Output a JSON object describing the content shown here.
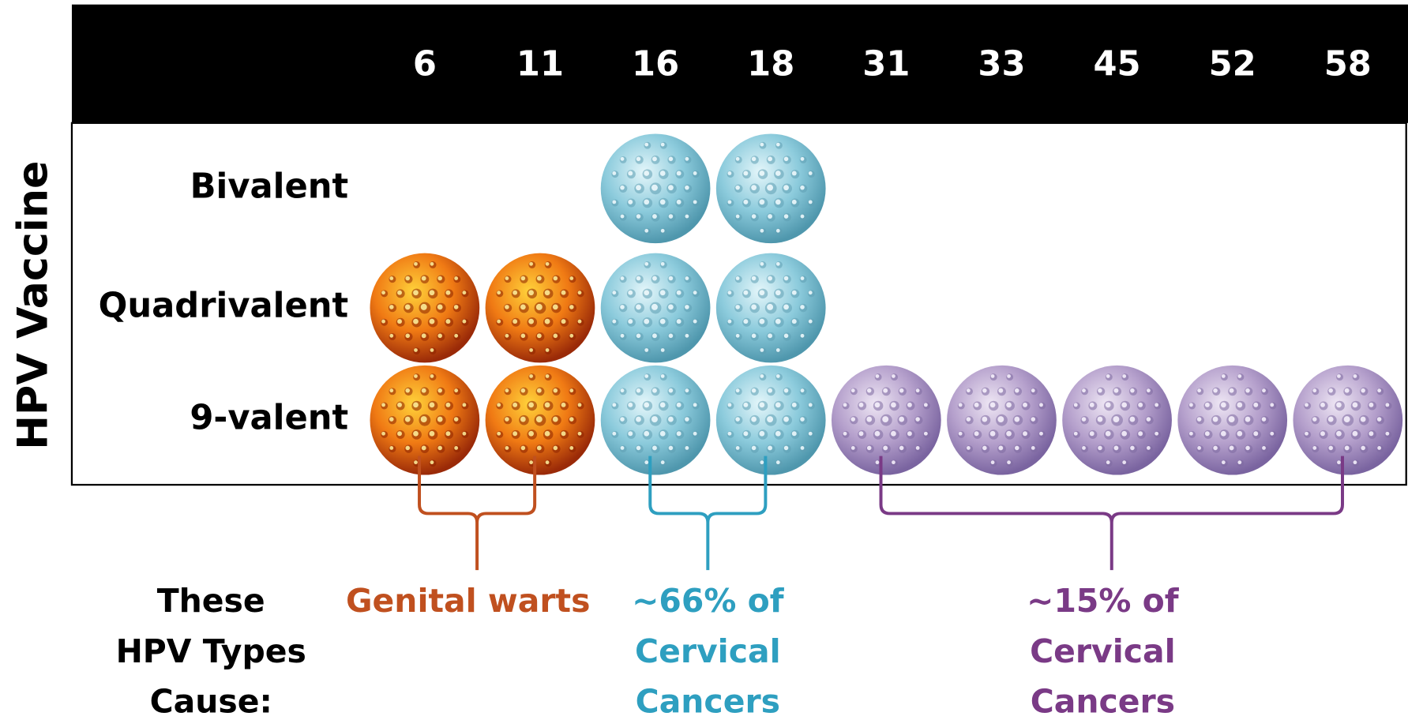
{
  "axis_title": "HPV Vaccine",
  "groups": [
    {
      "types": [
        "6",
        "11"
      ],
      "color": "#c0501f",
      "lines": [
        "Genital warts"
      ]
    },
    {
      "types": [
        "16",
        "18"
      ],
      "color": "#2e9fc0",
      "lines": [
        "~66% of",
        "Cervical",
        "Cancers"
      ]
    },
    {
      "types": [
        "31",
        "33",
        "45",
        "52",
        "58"
      ],
      "color": "#7a3a86",
      "lines": [
        "~15% of",
        "Cervical",
        "Cancers"
      ]
    }
  ],
  "vaccines": [
    {
      "name": "Bivalent",
      "covered": [
        false,
        false,
        true,
        true,
        false,
        false,
        false,
        false,
        false
      ]
    },
    {
      "name": "Quadrivalent",
      "covered": [
        true,
        true,
        true,
        true,
        false,
        false,
        false,
        false,
        false
      ]
    },
    {
      "name": "9-valent",
      "covered": [
        true,
        true,
        true,
        true,
        true,
        true,
        true,
        true,
        true
      ]
    }
  ],
  "caption_lines": [
    "These",
    "HPV Types",
    "Cause:"
  ]
}
